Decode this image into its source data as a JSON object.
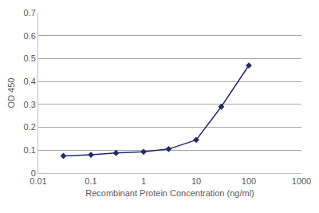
{
  "chart_data": {
    "type": "line",
    "xlabel": "Recombinant Protein Concentration (ng/ml)",
    "ylabel": "OD 450",
    "x": [
      0.03,
      0.1,
      0.3,
      1,
      3,
      10,
      30,
      100
    ],
    "values": [
      0.075,
      0.08,
      0.088,
      0.093,
      0.105,
      0.145,
      0.29,
      0.47
    ],
    "color": "#1f2a6e",
    "marker": "diamond",
    "log": "x",
    "grid": true,
    "xlim": [
      0.01,
      1000
    ],
    "xticks": [
      0.01,
      0.1,
      1,
      10,
      100,
      1000
    ],
    "ylim": [
      0,
      0.7
    ],
    "yticks": [
      0,
      0.1,
      0.2,
      0.3,
      0.4,
      0.5,
      0.6,
      0.7
    ]
  }
}
